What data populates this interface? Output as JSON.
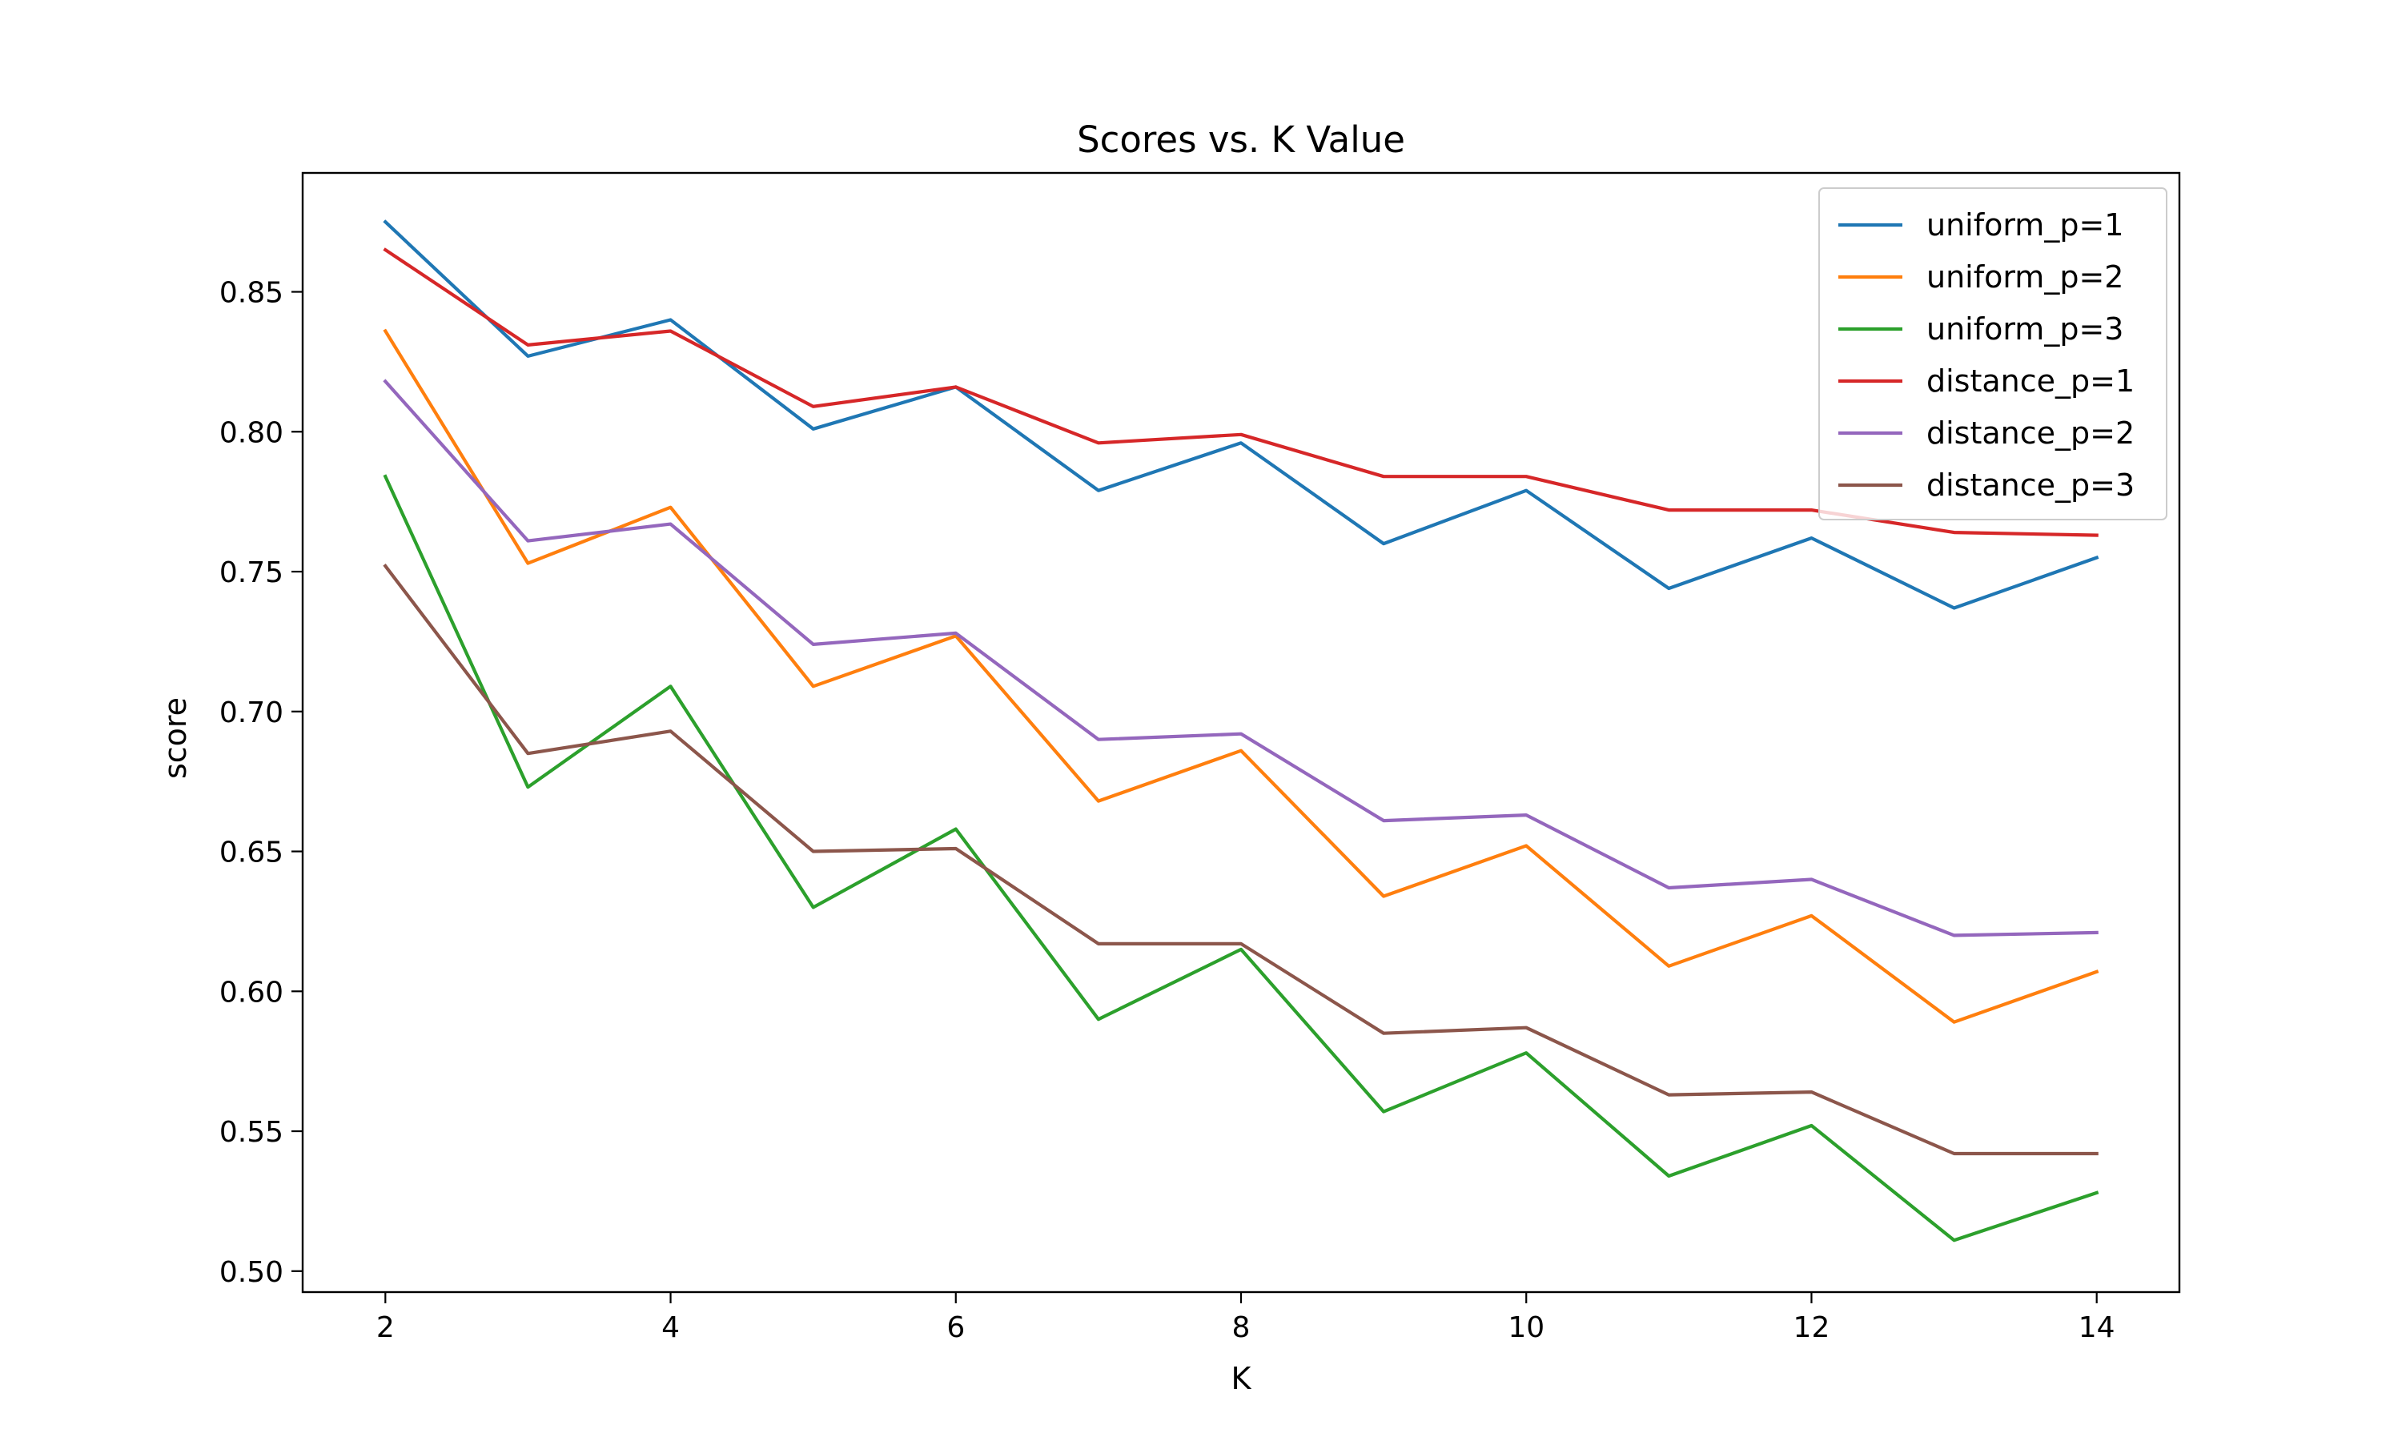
{
  "chart_data": {
    "type": "line",
    "title": "Scores vs. K Value",
    "xlabel": "K",
    "ylabel": "score",
    "x": [
      2,
      3,
      4,
      5,
      6,
      7,
      8,
      9,
      10,
      11,
      12,
      13,
      14
    ],
    "xlim": [
      1.42,
      14.58
    ],
    "ylim": [
      0.4925,
      0.8925
    ],
    "xticks": [
      2,
      4,
      6,
      8,
      10,
      12,
      14
    ],
    "yticks": [
      0.5,
      0.55,
      0.6,
      0.65,
      0.7,
      0.75,
      0.8,
      0.85
    ],
    "ytick_labels": [
      "0.50",
      "0.55",
      "0.60",
      "0.65",
      "0.70",
      "0.75",
      "0.80",
      "0.85"
    ],
    "grid": false,
    "legend_position": "top-right",
    "series": [
      {
        "name": "uniform_p=1",
        "color": "#1f77b4",
        "values": [
          0.875,
          0.827,
          0.84,
          0.801,
          0.816,
          0.779,
          0.796,
          0.76,
          0.779,
          0.744,
          0.762,
          0.737,
          0.755
        ]
      },
      {
        "name": "uniform_p=2",
        "color": "#ff7f0e",
        "values": [
          0.836,
          0.753,
          0.773,
          0.709,
          0.727,
          0.668,
          0.686,
          0.634,
          0.652,
          0.609,
          0.627,
          0.589,
          0.607
        ]
      },
      {
        "name": "uniform_p=3",
        "color": "#2ca02c",
        "values": [
          0.784,
          0.673,
          0.709,
          0.63,
          0.658,
          0.59,
          0.615,
          0.557,
          0.578,
          0.534,
          0.552,
          0.511,
          0.528
        ]
      },
      {
        "name": "distance_p=1",
        "color": "#d62728",
        "values": [
          0.865,
          0.831,
          0.836,
          0.809,
          0.816,
          0.796,
          0.799,
          0.784,
          0.784,
          0.772,
          0.772,
          0.764,
          0.763
        ]
      },
      {
        "name": "distance_p=2",
        "color": "#9467bd",
        "values": [
          0.818,
          0.761,
          0.767,
          0.724,
          0.728,
          0.69,
          0.692,
          0.661,
          0.663,
          0.637,
          0.64,
          0.62,
          0.621
        ]
      },
      {
        "name": "distance_p=3",
        "color": "#8c564b",
        "values": [
          0.752,
          0.685,
          0.693,
          0.65,
          0.651,
          0.617,
          0.617,
          0.585,
          0.587,
          0.563,
          0.564,
          0.542,
          0.542
        ]
      }
    ]
  }
}
